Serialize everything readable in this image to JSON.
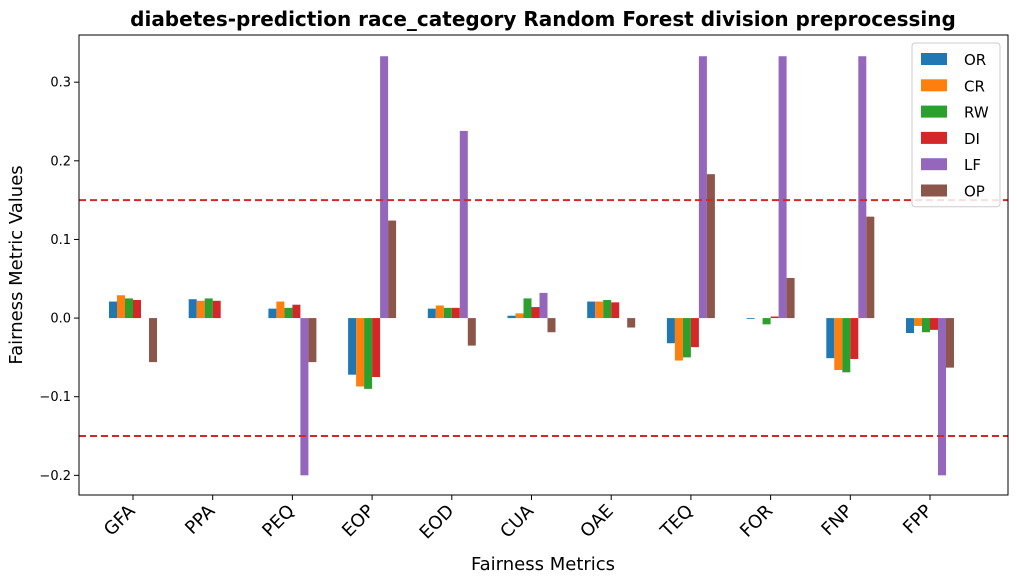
{
  "chart_data": {
    "type": "bar",
    "title": "diabetes-prediction race_category Random Forest division preprocessing",
    "xlabel": "Fairness Metrics",
    "ylabel": "Fairness Metric Values",
    "categories": [
      "GFA",
      "PPA",
      "PEQ",
      "EOP",
      "EOD",
      "CUA",
      "OAE",
      "TEQ",
      "FOR",
      "FNP",
      "FPP"
    ],
    "ylim": [
      -0.225,
      0.36
    ],
    "yticks": [
      -0.2,
      -0.1,
      0.0,
      0.1,
      0.2,
      0.3
    ],
    "ytick_labels": [
      "−0.2",
      "−0.1",
      "0.0",
      "0.1",
      "0.2",
      "0.3"
    ],
    "reference_lines": [
      0.15,
      -0.15
    ],
    "reference_line_color": "#d62728",
    "legend_position": "top-right",
    "grid": false,
    "series": [
      {
        "name": "OR",
        "color": "#1f77b4",
        "values": [
          0.021,
          0.024,
          0.012,
          -0.072,
          0.012,
          0.003,
          0.021,
          -0.032,
          -0.001,
          -0.051,
          -0.019
        ]
      },
      {
        "name": "CR",
        "color": "#ff7f0e",
        "values": [
          0.029,
          0.022,
          0.021,
          -0.087,
          0.016,
          0.006,
          0.021,
          -0.054,
          0.0,
          -0.066,
          -0.01
        ]
      },
      {
        "name": "RW",
        "color": "#2ca02c",
        "values": [
          0.025,
          0.025,
          0.013,
          -0.09,
          0.013,
          0.025,
          0.023,
          -0.05,
          -0.008,
          -0.069,
          -0.018
        ]
      },
      {
        "name": "DI",
        "color": "#d62728",
        "values": [
          0.023,
          0.022,
          0.017,
          -0.075,
          0.013,
          0.014,
          0.02,
          -0.037,
          0.002,
          -0.052,
          -0.015
        ]
      },
      {
        "name": "LF",
        "color": "#9467bd",
        "values": [
          0.0,
          0.0,
          -0.2,
          0.333,
          0.238,
          0.032,
          0.0,
          0.333,
          0.333,
          0.333,
          -0.2
        ]
      },
      {
        "name": "OP",
        "color": "#8c564b",
        "values": [
          -0.056,
          0.0,
          -0.056,
          0.124,
          -0.035,
          -0.018,
          -0.012,
          0.183,
          0.051,
          0.129,
          -0.063
        ]
      }
    ]
  }
}
